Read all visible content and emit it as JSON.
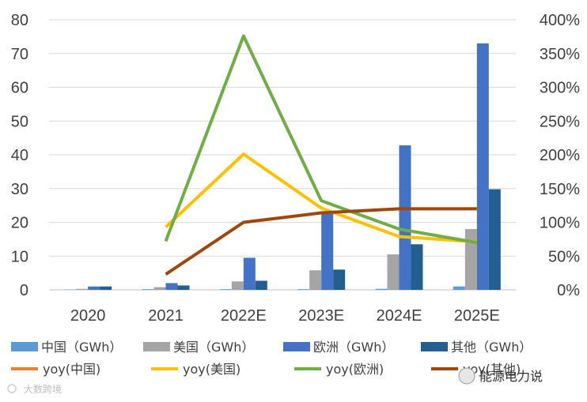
{
  "chart_data": {
    "type": "bar",
    "categories": [
      "2020",
      "2021",
      "2022E",
      "2023E",
      "2024E",
      "2025E"
    ],
    "bar_series": [
      {
        "name": "中国（GWh）",
        "color": "#5b9bd5",
        "values": [
          0.1,
          0.2,
          0.2,
          0.2,
          0.3,
          1.0
        ]
      },
      {
        "name": "美国（GWh）",
        "color": "#a5a5a5",
        "values": [
          0.3,
          0.8,
          2.5,
          5.8,
          10.5,
          18.0
        ]
      },
      {
        "name": "欧洲（GWh）",
        "color": "#4472c4",
        "values": [
          1.0,
          2.0,
          9.5,
          22.5,
          42.8,
          73.0
        ]
      },
      {
        "name": "其他（GWh）",
        "color": "#255e91",
        "values": [
          1.0,
          1.3,
          2.7,
          6.0,
          13.5,
          29.8
        ]
      }
    ],
    "line_series": [
      {
        "name": "yoy(中国)",
        "color": "#ed7d31",
        "values": [
          null,
          null,
          null,
          null,
          null,
          null
        ]
      },
      {
        "name": "yoy(美国)",
        "color": "#ffc000",
        "values": [
          null,
          93,
          201,
          121,
          79,
          71
        ]
      },
      {
        "name": "yoy(欧洲)",
        "color": "#70ad47",
        "values": [
          null,
          72,
          376,
          132,
          90,
          70
        ]
      },
      {
        "name": "yoy(其他)",
        "color": "#9e480e",
        "values": [
          null,
          23,
          100,
          114,
          120,
          120
        ]
      }
    ],
    "left_axis": {
      "min": 0,
      "max": 80,
      "step": 10
    },
    "right_axis": {
      "min": 0,
      "max": 400,
      "step": 50,
      "suffix": "%"
    },
    "title": "",
    "xlabel": "",
    "ylabel": "",
    "grid": true,
    "legend_position": "bottom"
  },
  "watermark": {
    "bottom_left": "大数跨境",
    "bottom_right": "能源电力说"
  }
}
